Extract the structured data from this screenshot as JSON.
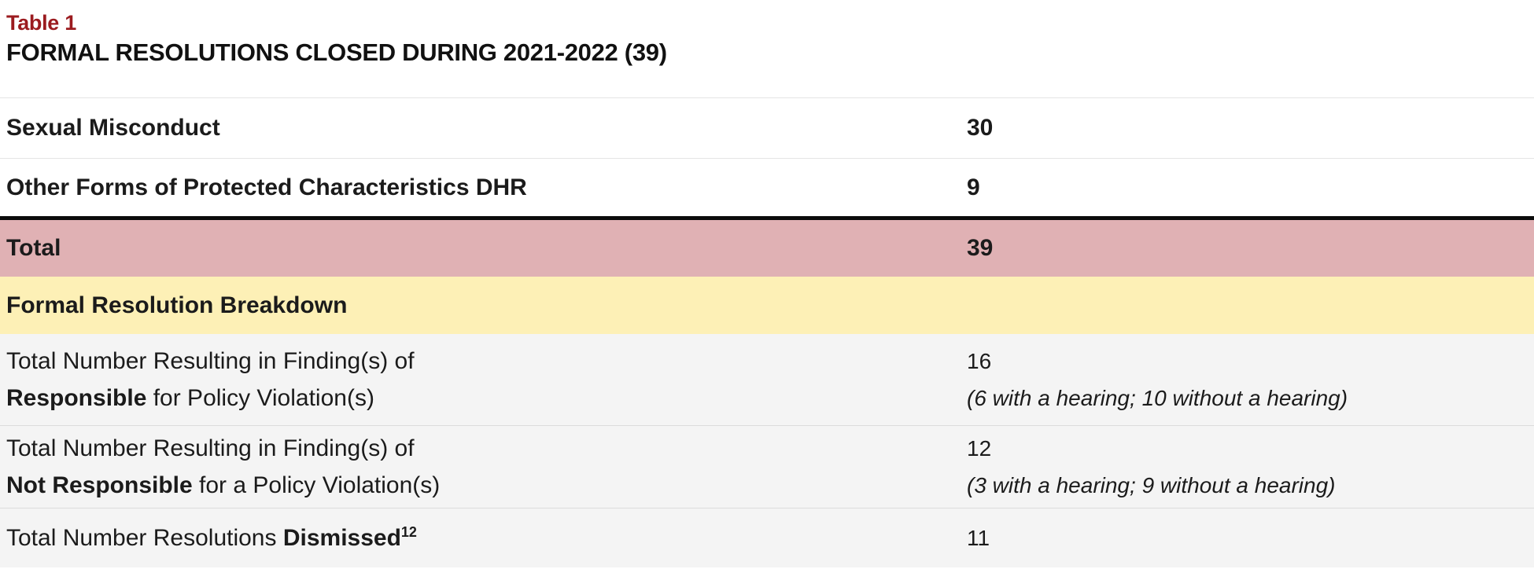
{
  "table": {
    "eyebrow": "Table 1",
    "title": "FORMAL RESOLUTIONS CLOSED DURING 2021-2022 (39)",
    "colors": {
      "eyebrow_red": "#9b1b1f",
      "total_row_pink": "#e0b1b4",
      "section_header_yellow": "#fdf0b6",
      "breakdown_row_gray": "#f4f4f4",
      "thick_divider_black": "#0b0b0b",
      "separator_gray": "#e4e4e4"
    },
    "rows": [
      {
        "label": "Sexual Misconduct",
        "value": "30"
      },
      {
        "label": "Other Forms of Protected Characteristics DHR",
        "value": "9"
      },
      {
        "label": "Total",
        "value": "39"
      },
      {
        "label": "Formal Resolution Breakdown"
      },
      {
        "label_pre": "Total Number Resulting in Finding(s) of",
        "label_bold": "Responsible",
        "label_post": " for Policy Violation(s)",
        "value": "16",
        "value_note": "(6 with a hearing; 10 without a hearing)"
      },
      {
        "label_pre": "Total Number Resulting in Finding(s) of",
        "label_bold": "Not Responsible",
        "label_post": " for a Policy Violation(s)",
        "value": "12",
        "value_note": "(3 with a hearing; 9 without a hearing)"
      },
      {
        "label_pre": "Total Number Resolutions ",
        "label_bold": "Dismissed",
        "label_sup": "12",
        "value": "11"
      }
    ]
  }
}
